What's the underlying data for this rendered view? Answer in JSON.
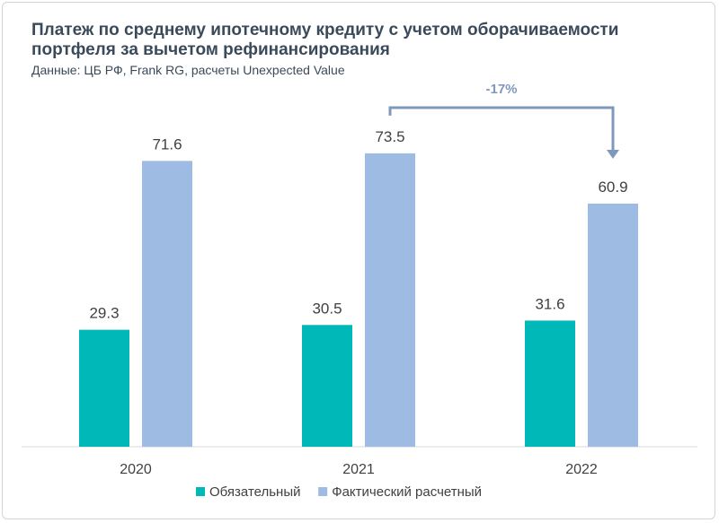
{
  "chart_data": {
    "type": "bar",
    "title": "Платеж по среднему ипотечному кредиту с учетом оборачиваемости портфеля за вычетом рефинансирования",
    "subtitle": "Данные: ЦБ РФ, Frank RG, расчеты Unexpected Value",
    "categories": [
      "2020",
      "2021",
      "2022"
    ],
    "series": [
      {
        "name": "Обязательный",
        "values": [
          29.3,
          30.5,
          31.6
        ],
        "labels": [
          "29.3",
          "30.5",
          "31.6"
        ],
        "color": "#00b8b8"
      },
      {
        "name": "Фактический расчетный",
        "values": [
          71.6,
          73.5,
          60.9
        ],
        "labels": [
          "71.6",
          "73.5",
          "60.9"
        ],
        "color": "#9dbbe3"
      }
    ],
    "ylim": [
      0,
      80
    ],
    "grid": false,
    "legend": "bottom",
    "annotation": {
      "text": "-17%",
      "from": "2021",
      "to": "2022",
      "series": "Фактический расчетный",
      "color": "#7f99bd"
    }
  }
}
